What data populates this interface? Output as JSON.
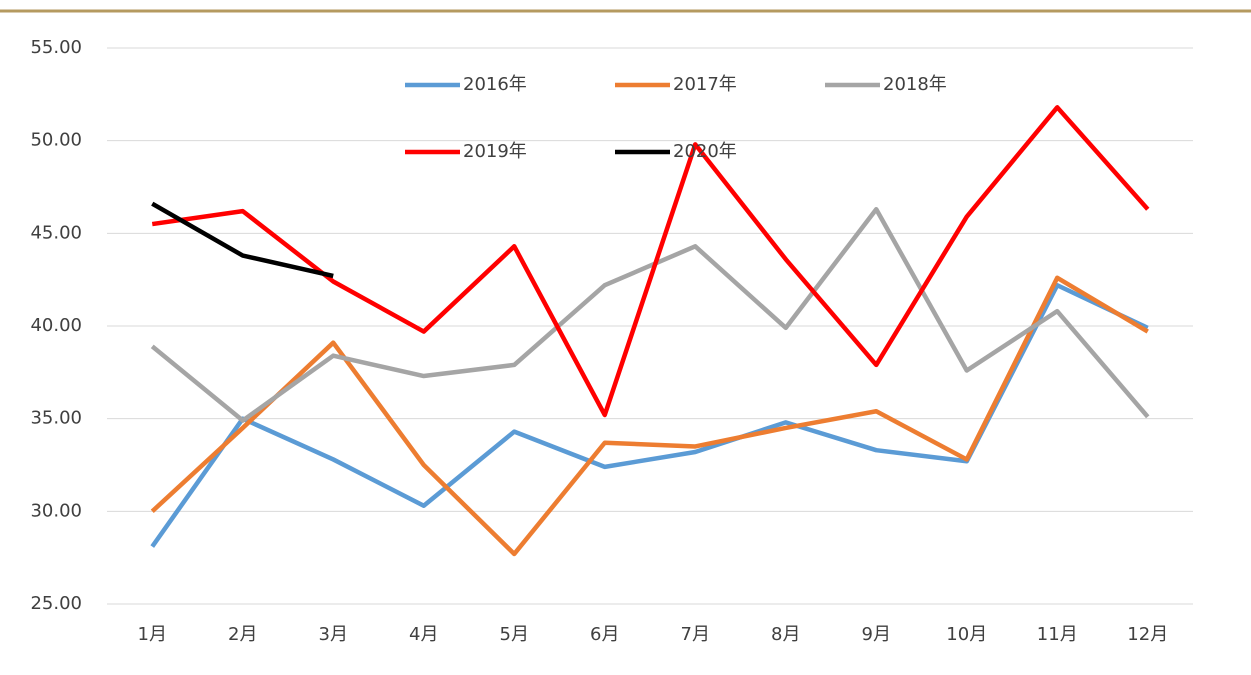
{
  "chart_data": {
    "type": "line",
    "categories": [
      "1月",
      "2月",
      "3月",
      "4月",
      "5月",
      "6月",
      "7月",
      "8月",
      "9月",
      "10月",
      "11月",
      "12月"
    ],
    "series": [
      {
        "name": "2016年",
        "color": "#5b9bd5",
        "values": [
          28.1,
          35.0,
          32.8,
          30.3,
          34.3,
          32.4,
          33.2,
          34.8,
          33.3,
          32.7,
          42.2,
          39.9
        ]
      },
      {
        "name": "2017年",
        "color": "#ed7d31",
        "values": [
          30.0,
          34.5,
          39.1,
          32.5,
          27.7,
          33.7,
          33.5,
          34.5,
          35.4,
          32.8,
          42.6,
          39.7
        ]
      },
      {
        "name": "2018年",
        "color": "#a5a5a5",
        "values": [
          38.9,
          34.9,
          38.4,
          37.3,
          37.9,
          42.2,
          44.3,
          39.9,
          46.3,
          37.6,
          40.8,
          35.1
        ]
      },
      {
        "name": "2019年",
        "color": "#ff0000",
        "values": [
          45.5,
          46.2,
          42.4,
          39.7,
          44.3,
          35.2,
          49.8,
          43.6,
          37.9,
          45.9,
          51.8,
          46.3
        ]
      },
      {
        "name": "2020年",
        "color": "#000000",
        "values": [
          46.6,
          43.8,
          42.7,
          null,
          null,
          null,
          null,
          null,
          null,
          null,
          null,
          null
        ]
      }
    ],
    "ylim": [
      25,
      55
    ],
    "yticks": [
      {
        "value": 25,
        "label": "25.00"
      },
      {
        "value": 30,
        "label": "30.00"
      },
      {
        "value": 35,
        "label": "35.00"
      },
      {
        "value": 40,
        "label": "40.00"
      },
      {
        "value": 45,
        "label": "45.00"
      },
      {
        "value": 50,
        "label": "50.00"
      },
      {
        "value": 55,
        "label": "55.00"
      }
    ],
    "grid": true
  }
}
